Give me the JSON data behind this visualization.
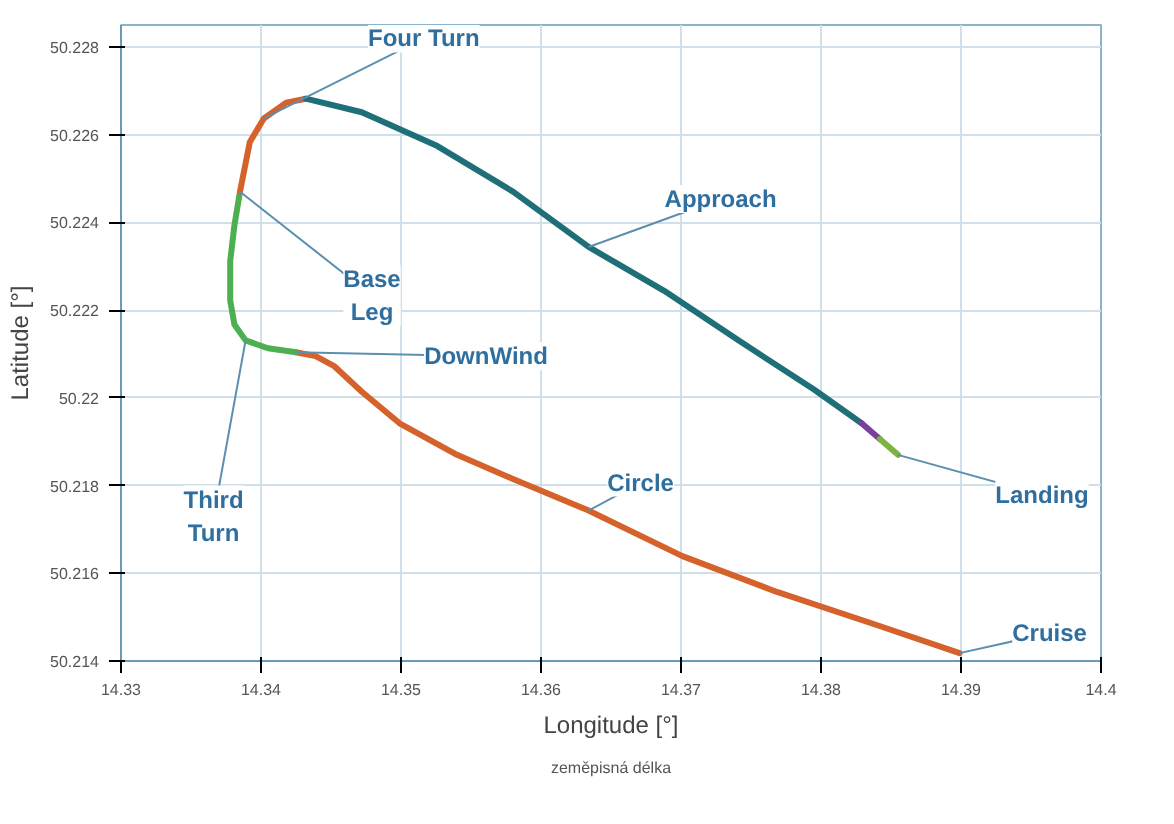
{
  "chart_data": {
    "type": "line",
    "xlabel": "Longitude [°]",
    "ylabel": "Latitude [°]",
    "xlim": [
      14.33,
      14.4
    ],
    "ylim": [
      50.214,
      50.2285
    ],
    "xticks": [
      14.33,
      14.34,
      14.35,
      14.36,
      14.37,
      14.38,
      14.39,
      14.4
    ],
    "yticks": [
      50.214,
      50.216,
      50.218,
      50.22,
      50.222,
      50.224,
      50.226,
      50.228
    ],
    "grid": true,
    "marker": "none",
    "line_style": "solid",
    "series": [
      {
        "color": "#d4622a",
        "x": [
          14.3899,
          14.3836,
          14.3768,
          14.3701,
          14.3634,
          14.358,
          14.354,
          14.3499,
          14.3472,
          14.3452,
          14.3439,
          14.3425
        ],
        "values": [
          50.21418,
          50.21486,
          50.21558,
          50.21639,
          50.21743,
          50.21815,
          50.2187,
          50.21942,
          50.22014,
          50.22073,
          50.22095,
          50.22104
        ]
      },
      {
        "color": "#4caf50",
        "x": [
          14.3425,
          14.3405,
          14.3389,
          14.3381,
          14.3378,
          14.3378,
          14.3381,
          14.3385
        ],
        "values": [
          50.22104,
          50.22113,
          50.22131,
          50.22167,
          50.22222,
          50.22312,
          50.22393,
          50.2247
        ]
      },
      {
        "color": "#d4622a",
        "x": [
          14.3385,
          14.3392,
          14.3402,
          14.3418,
          14.3432
        ],
        "values": [
          50.2247,
          50.22583,
          50.22637,
          50.22673,
          50.22682
        ]
      },
      {
        "color": "#1f6f78",
        "x": [
          14.3432,
          14.3472,
          14.3526,
          14.358,
          14.3634,
          14.3688,
          14.3741,
          14.3795,
          14.3829
        ],
        "values": [
          50.22682,
          50.22651,
          50.22574,
          50.2247,
          50.22344,
          50.22244,
          50.22131,
          50.22019,
          50.21942
        ]
      },
      {
        "color": "#7b3f9e",
        "x": [
          14.3829,
          14.3842
        ],
        "values": [
          50.21942,
          50.21906
        ]
      },
      {
        "color": "#7cb342",
        "x": [
          14.3842,
          14.3855
        ],
        "values": [
          50.21906,
          50.2187
        ]
      }
    ],
    "annotations": [
      {
        "text": "Four Turn",
        "x": 14.3402,
        "y": 50.22637
      },
      {
        "text": "Approach",
        "x": 14.3634,
        "y": 50.22344
      },
      {
        "text": "Base\nLeg",
        "x": 14.3385,
        "y": 50.2247
      },
      {
        "text": "DownWind",
        "x": 14.3425,
        "y": 50.22104
      },
      {
        "text": "Circle",
        "x": 14.3634,
        "y": 50.21743
      },
      {
        "text": "Third\nTurn",
        "x": 14.3389,
        "y": 50.22131
      },
      {
        "text": "Landing",
        "x": 14.3855,
        "y": 50.2187
      },
      {
        "text": "Cruise",
        "x": 14.3899,
        "y": 50.21418
      },
      "zeměpisná délka"
    ]
  }
}
